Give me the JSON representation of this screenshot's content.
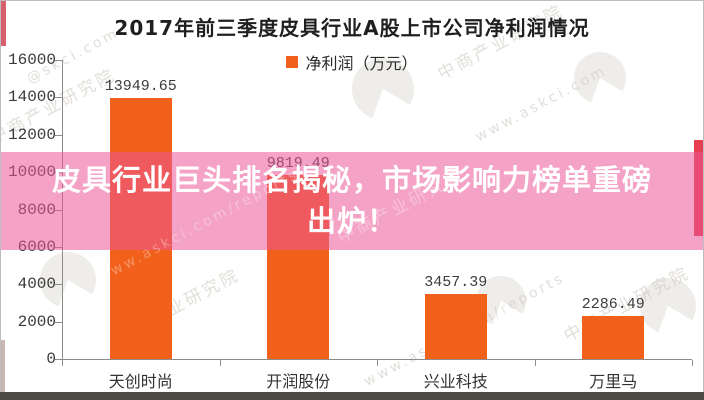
{
  "page": {
    "title": "2017年前三季度皮具行业A股上市公司净利润情况",
    "legend_label": "净利润（万元）"
  },
  "overlay": {
    "line1": "皮具行业巨头排名揭秘，市场影响力榜单重磅",
    "line2": "出炉！"
  },
  "watermarks": {
    "brand": "中商产业研究院",
    "url": "www.askci.com/reports",
    "url_short": "www.askci.com",
    "at_short": "@skci.com"
  },
  "colors": {
    "bar": "#F2611C",
    "banner": "rgba(235,85,150,0.55)",
    "accent_red": "#E63E52",
    "accent_red_soft": "#CF4453",
    "accent_dark": "#7a4a44"
  },
  "chart_data": {
    "type": "bar",
    "title": "2017年前三季度皮具行业A股上市公司净利润情况",
    "legend": [
      "净利润（万元）"
    ],
    "legend_position": "top-center",
    "categories": [
      "天创时尚",
      "开润股份",
      "兴业科技",
      "万里马"
    ],
    "values": [
      13949.65,
      9819.49,
      3457.39,
      2286.49
    ],
    "value_labels": [
      "13949.65",
      "9819.49",
      "3457.39",
      "2286.49"
    ],
    "xlabel": "",
    "ylabel": "",
    "ylim": [
      0,
      16000
    ],
    "ytick_step": 2000,
    "grid": false
  }
}
